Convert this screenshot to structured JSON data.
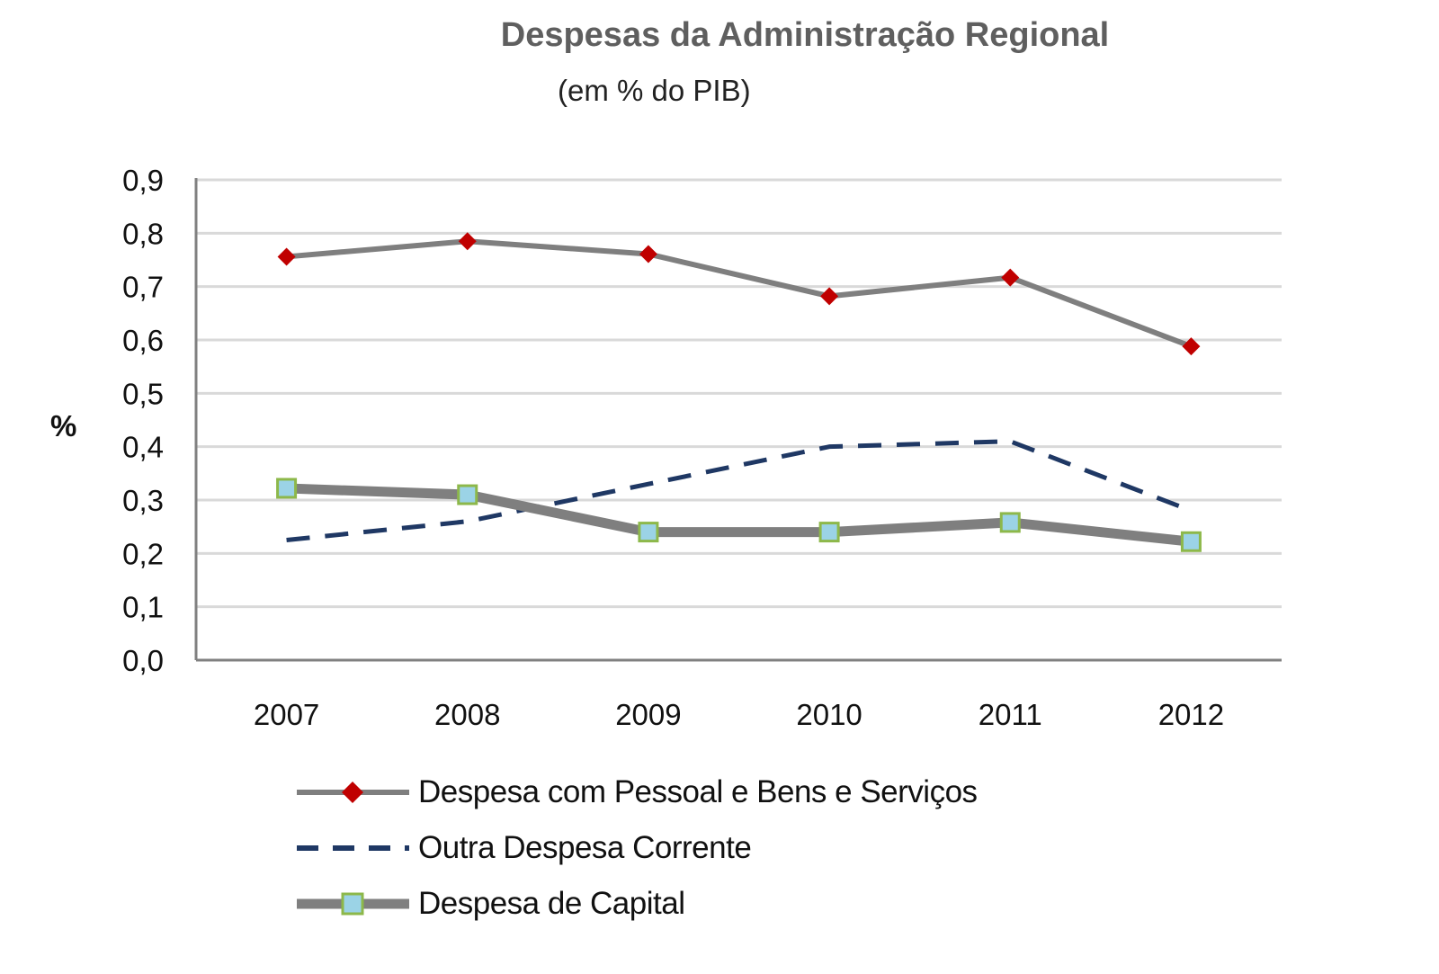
{
  "chart_data": {
    "type": "line",
    "title": "Despesas da Administração Regional",
    "subtitle": "(em % do PIB)",
    "ylabel": "%",
    "xlabel": "",
    "categories": [
      "2007",
      "2008",
      "2009",
      "2010",
      "2011",
      "2012"
    ],
    "ylim": [
      0,
      0.9
    ],
    "yticks": [
      "0,0",
      "0,1",
      "0,2",
      "0,3",
      "0,4",
      "0,5",
      "0,6",
      "0,7",
      "0,8",
      "0,9"
    ],
    "grid": true,
    "legend_position": "bottom",
    "series": [
      {
        "name": "Despesa com Pessoal e Bens e Serviços",
        "values": [
          0.756,
          0.785,
          0.761,
          0.682,
          0.717,
          0.588
        ],
        "line_color": "#7f7f7f",
        "marker": "diamond",
        "marker_color": "#c00000",
        "style": "solid"
      },
      {
        "name": "Outra Despesa Corrente",
        "values": [
          0.225,
          0.26,
          0.33,
          0.4,
          0.41,
          0.28
        ],
        "line_color": "#1f3864",
        "marker": "none",
        "style": "dashed"
      },
      {
        "name": "Despesa de Capital",
        "values": [
          0.322,
          0.31,
          0.24,
          0.24,
          0.258,
          0.222
        ],
        "line_color": "#7f7f7f",
        "marker": "square",
        "marker_color": "#9bd3e6",
        "marker_border": "#8db84a",
        "style": "thick"
      }
    ]
  }
}
